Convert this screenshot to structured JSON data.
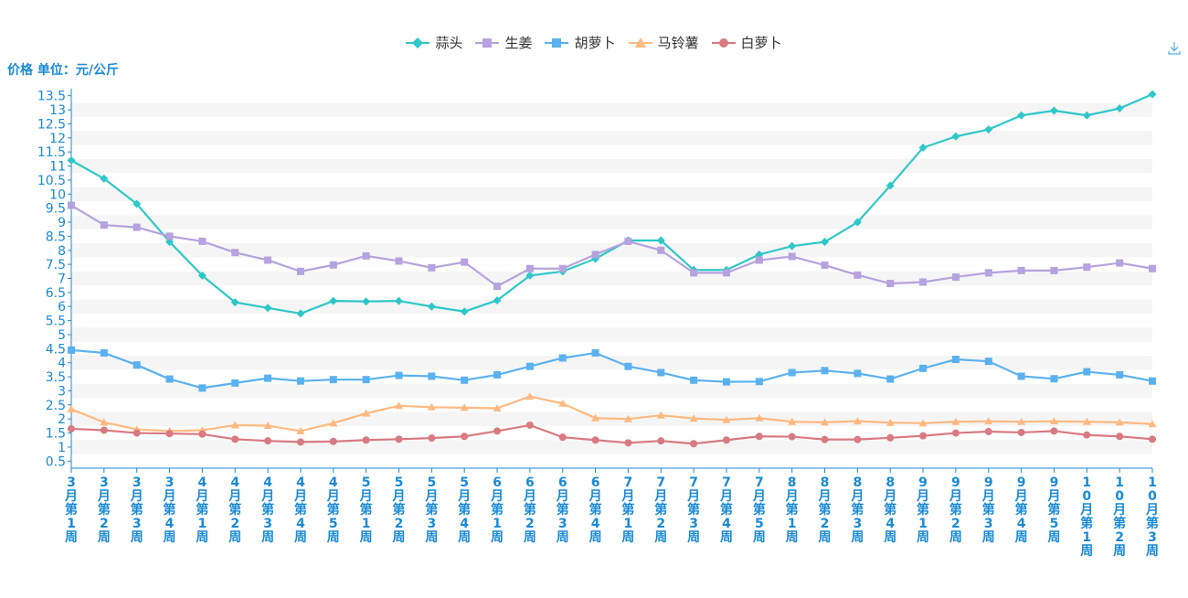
{
  "y_axis_title": "价格 单位：元/公斤",
  "toolbar": {
    "download_icon": "download-icon"
  },
  "colors": {
    "axis_text": "#1a8ad4",
    "band_light": "#ffffff",
    "band_dark": "#f5f5f5"
  },
  "chart_data": {
    "type": "line",
    "categories": [
      "3月第1周",
      "3月第2周",
      "3月第3周",
      "3月第4周",
      "4月第1周",
      "4月第2周",
      "4月第3周",
      "4月第4周",
      "4月第5周",
      "5月第1周",
      "5月第2周",
      "5月第3周",
      "5月第4周",
      "6月第1周",
      "6月第2周",
      "6月第3周",
      "6月第4周",
      "7月第1周",
      "7月第2周",
      "7月第3周",
      "7月第4周",
      "7月第5周",
      "8月第1周",
      "8月第2周",
      "8月第3周",
      "8月第4周",
      "9月第1周",
      "9月第2周",
      "9月第3周",
      "9月第4周",
      "9月第5周",
      "10月第1周",
      "10月第2周",
      "10月第3周"
    ],
    "ylim": [
      0.25,
      13.75
    ],
    "y_ticks": [
      0.5,
      1,
      1.5,
      2,
      2.5,
      3,
      3.5,
      4,
      4.5,
      5,
      5.5,
      6,
      6.5,
      7,
      7.5,
      8,
      8.5,
      9,
      9.5,
      10,
      10.5,
      11,
      11.5,
      12,
      12.5,
      13,
      13.5
    ],
    "ylabel": "价格 单位：元/公斤",
    "grid": "horizontal bands",
    "legend_position": "top-center",
    "series": [
      {
        "name": "蒜头",
        "color": "#2ec7c9",
        "marker": "diamond",
        "values": [
          11.2,
          10.55,
          9.65,
          8.3,
          7.1,
          6.15,
          5.95,
          5.75,
          6.2,
          6.18,
          6.2,
          6.0,
          5.82,
          6.22,
          7.1,
          7.25,
          7.7,
          8.35,
          8.35,
          7.3,
          7.3,
          7.85,
          8.15,
          8.3,
          9.0,
          10.3,
          11.65,
          12.05,
          12.3,
          12.8,
          12.97,
          12.8,
          13.05,
          13.55
        ]
      },
      {
        "name": "生姜",
        "color": "#b6a2de",
        "marker": "square",
        "values": [
          9.6,
          8.9,
          8.82,
          8.5,
          8.32,
          7.92,
          7.65,
          7.25,
          7.48,
          7.8,
          7.62,
          7.38,
          7.58,
          6.72,
          7.35,
          7.35,
          7.85,
          8.32,
          8.0,
          7.2,
          7.2,
          7.65,
          7.78,
          7.47,
          7.12,
          6.82,
          6.87,
          7.05,
          7.2,
          7.28,
          7.28,
          7.4,
          7.55,
          7.35
        ]
      },
      {
        "name": "胡萝卜",
        "color": "#5ab1ef",
        "marker": "square",
        "values": [
          4.45,
          4.35,
          3.92,
          3.42,
          3.1,
          3.28,
          3.45,
          3.35,
          3.4,
          3.4,
          3.55,
          3.52,
          3.38,
          3.57,
          3.87,
          4.17,
          4.35,
          3.87,
          3.65,
          3.38,
          3.32,
          3.33,
          3.65,
          3.72,
          3.62,
          3.42,
          3.8,
          4.12,
          4.05,
          3.52,
          3.43,
          3.68,
          3.57,
          3.35
        ]
      },
      {
        "name": "马铃薯",
        "color": "#ffb980",
        "marker": "triangle",
        "values": [
          2.35,
          1.88,
          1.63,
          1.57,
          1.6,
          1.78,
          1.76,
          1.57,
          1.85,
          2.2,
          2.47,
          2.42,
          2.4,
          2.38,
          2.8,
          2.55,
          2.03,
          2.0,
          2.13,
          2.02,
          1.97,
          2.03,
          1.9,
          1.88,
          1.92,
          1.87,
          1.85,
          1.9,
          1.92,
          1.9,
          1.92,
          1.9,
          1.88,
          1.82
        ]
      },
      {
        "name": "白萝卜",
        "color": "#d87a80",
        "marker": "circle",
        "values": [
          1.65,
          1.6,
          1.5,
          1.48,
          1.46,
          1.28,
          1.22,
          1.18,
          1.2,
          1.25,
          1.28,
          1.32,
          1.38,
          1.57,
          1.78,
          1.35,
          1.25,
          1.15,
          1.22,
          1.12,
          1.25,
          1.38,
          1.37,
          1.27,
          1.27,
          1.33,
          1.4,
          1.5,
          1.55,
          1.52,
          1.57,
          1.43,
          1.38,
          1.28
        ]
      }
    ]
  }
}
